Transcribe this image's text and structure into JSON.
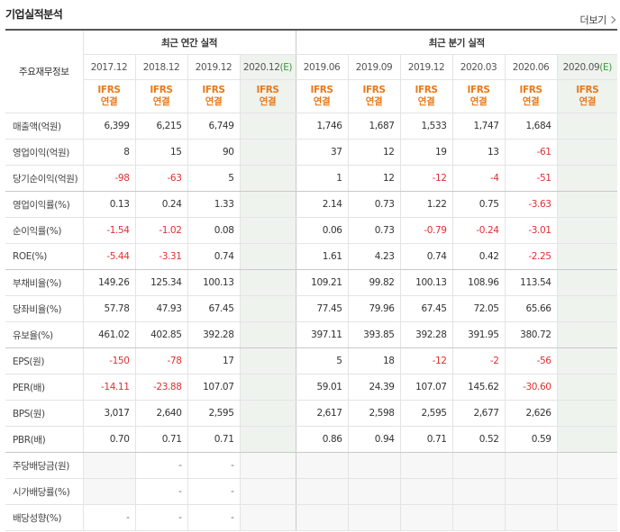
{
  "header": {
    "title": "기업실적분석",
    "more_label": "더보기"
  },
  "table": {
    "row_header_label": "주요재무정보",
    "annual_group": "최근 연간 실적",
    "quarter_group": "최근 분기 실적",
    "annual_periods": [
      "2017.12",
      "2018.12",
      "2019.12",
      "2020.12"
    ],
    "quarter_periods": [
      "2019.06",
      "2019.09",
      "2019.12",
      "2020.03",
      "2020.06",
      "2020.09"
    ],
    "estimate_mark": "(E)",
    "ifrs_top": "IFRS",
    "ifrs_bottom": "연결",
    "rows": [
      {
        "label": "매출액(억원)",
        "annual": [
          "6,399",
          "6,215",
          "6,749",
          ""
        ],
        "quarter": [
          "1,746",
          "1,687",
          "1,533",
          "1,747",
          "1,684",
          ""
        ]
      },
      {
        "label": "영업이익(억원)",
        "annual": [
          "8",
          "15",
          "90",
          ""
        ],
        "quarter": [
          "37",
          "12",
          "19",
          "13",
          "-61",
          ""
        ]
      },
      {
        "label": "당기순이익(억원)",
        "annual": [
          "-98",
          "-63",
          "5",
          ""
        ],
        "quarter": [
          "1",
          "12",
          "-12",
          "-4",
          "-51",
          ""
        ]
      },
      {
        "label": "영업이익률(%)",
        "annual": [
          "0.13",
          "0.24",
          "1.33",
          ""
        ],
        "quarter": [
          "2.14",
          "0.73",
          "1.22",
          "0.75",
          "-3.63",
          ""
        ]
      },
      {
        "label": "순이익률(%)",
        "annual": [
          "-1.54",
          "-1.02",
          "0.08",
          ""
        ],
        "quarter": [
          "0.06",
          "0.73",
          "-0.79",
          "-0.24",
          "-3.01",
          ""
        ]
      },
      {
        "label": "ROE(%)",
        "annual": [
          "-5.44",
          "-3.31",
          "0.74",
          ""
        ],
        "quarter": [
          "1.61",
          "4.23",
          "0.74",
          "0.42",
          "-2.25",
          ""
        ]
      },
      {
        "label": "부채비율(%)",
        "annual": [
          "149.26",
          "125.34",
          "100.13",
          ""
        ],
        "quarter": [
          "109.21",
          "99.82",
          "100.13",
          "108.96",
          "113.54",
          ""
        ]
      },
      {
        "label": "당좌비율(%)",
        "annual": [
          "57.78",
          "47.93",
          "67.45",
          ""
        ],
        "quarter": [
          "77.45",
          "79.96",
          "67.45",
          "72.05",
          "65.66",
          ""
        ]
      },
      {
        "label": "유보율(%)",
        "annual": [
          "461.02",
          "402.85",
          "392.28",
          ""
        ],
        "quarter": [
          "397.11",
          "393.85",
          "392.28",
          "391.95",
          "380.72",
          ""
        ]
      },
      {
        "label": "EPS(원)",
        "annual": [
          "-150",
          "-78",
          "17",
          ""
        ],
        "quarter": [
          "5",
          "18",
          "-12",
          "-2",
          "-56",
          ""
        ]
      },
      {
        "label": "PER(배)",
        "annual": [
          "-14.11",
          "-23.88",
          "107.07",
          ""
        ],
        "quarter": [
          "59.01",
          "24.39",
          "107.07",
          "145.62",
          "-30.60",
          ""
        ]
      },
      {
        "label": "BPS(원)",
        "annual": [
          "3,017",
          "2,640",
          "2,595",
          ""
        ],
        "quarter": [
          "2,617",
          "2,598",
          "2,595",
          "2,677",
          "2,626",
          ""
        ]
      },
      {
        "label": "PBR(배)",
        "annual": [
          "0.70",
          "0.71",
          "0.71",
          ""
        ],
        "quarter": [
          "0.86",
          "0.94",
          "0.71",
          "0.52",
          "0.59",
          ""
        ]
      },
      {
        "label": "주당배당금(원)",
        "annual": [
          "",
          "-",
          "-",
          ""
        ],
        "quarter": [
          "",
          "",
          "",
          "",
          "",
          ""
        ]
      },
      {
        "label": "시가배당률(%)",
        "annual": [
          "",
          "-",
          "-",
          ""
        ],
        "quarter": [
          "",
          "",
          "",
          "",
          "",
          ""
        ]
      },
      {
        "label": "배당성향(%)",
        "annual": [
          "-",
          "-",
          "-",
          ""
        ],
        "quarter": [
          "",
          "",
          "",
          "",
          "",
          ""
        ]
      }
    ]
  },
  "colors": {
    "negative": "#e03030",
    "ifrs": "#e87a1a",
    "estimate_bg": "#eef3ee"
  }
}
